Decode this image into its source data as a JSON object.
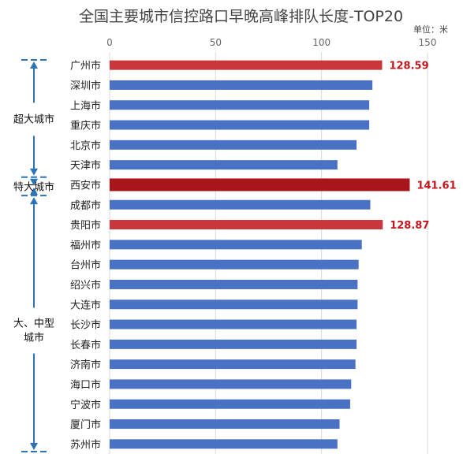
{
  "chart_data": {
    "type": "bar",
    "orientation": "horizontal",
    "title": "全国主要城市信控路口早晚高峰排队长度-TOP20",
    "unit": "单位：米",
    "xlim": [
      0,
      150
    ],
    "x_ticks": [
      "0",
      "50",
      "100",
      "150"
    ],
    "grid": true,
    "categories": [
      "广州市",
      "深圳市",
      "上海市",
      "重庆市",
      "北京市",
      "天津市",
      "西安市",
      "成都市",
      "贵阳市",
      "福州市",
      "台州市",
      "绍兴市",
      "大连市",
      "长沙市",
      "长春市",
      "济南市",
      "海口市",
      "宁波市",
      "厦门市",
      "苏州市"
    ],
    "values": [
      128.59,
      124,
      122.5,
      122.5,
      116.5,
      107.5,
      141.61,
      123,
      128.87,
      119,
      117.5,
      117,
      117,
      116.5,
      116.5,
      116,
      114,
      113.5,
      108.5,
      107.5
    ],
    "value_labels": [
      {
        "category": "广州市",
        "text": "128.59"
      },
      {
        "category": "西安市",
        "text": "141.61"
      },
      {
        "category": "贵阳市",
        "text": "128.87"
      }
    ],
    "groups": [
      {
        "label": "超大城市",
        "from": "广州市",
        "to": "天津市"
      },
      {
        "label": "特大城市",
        "from": "西安市",
        "to": "西安市"
      },
      {
        "label": "大、中型城市",
        "label_lines": [
          "大、中型",
          "城市"
        ],
        "from": "成都市",
        "to": "苏州市"
      }
    ],
    "colors": {
      "default_bar": "#4a72c4",
      "highlight_bar": "#c9363b",
      "top_bar": "#a8151b",
      "value_label": "#c0161c",
      "bracket": "#2e74b5"
    },
    "highlight": [
      "广州市",
      "贵阳市"
    ],
    "top": [
      "西安市"
    ]
  }
}
